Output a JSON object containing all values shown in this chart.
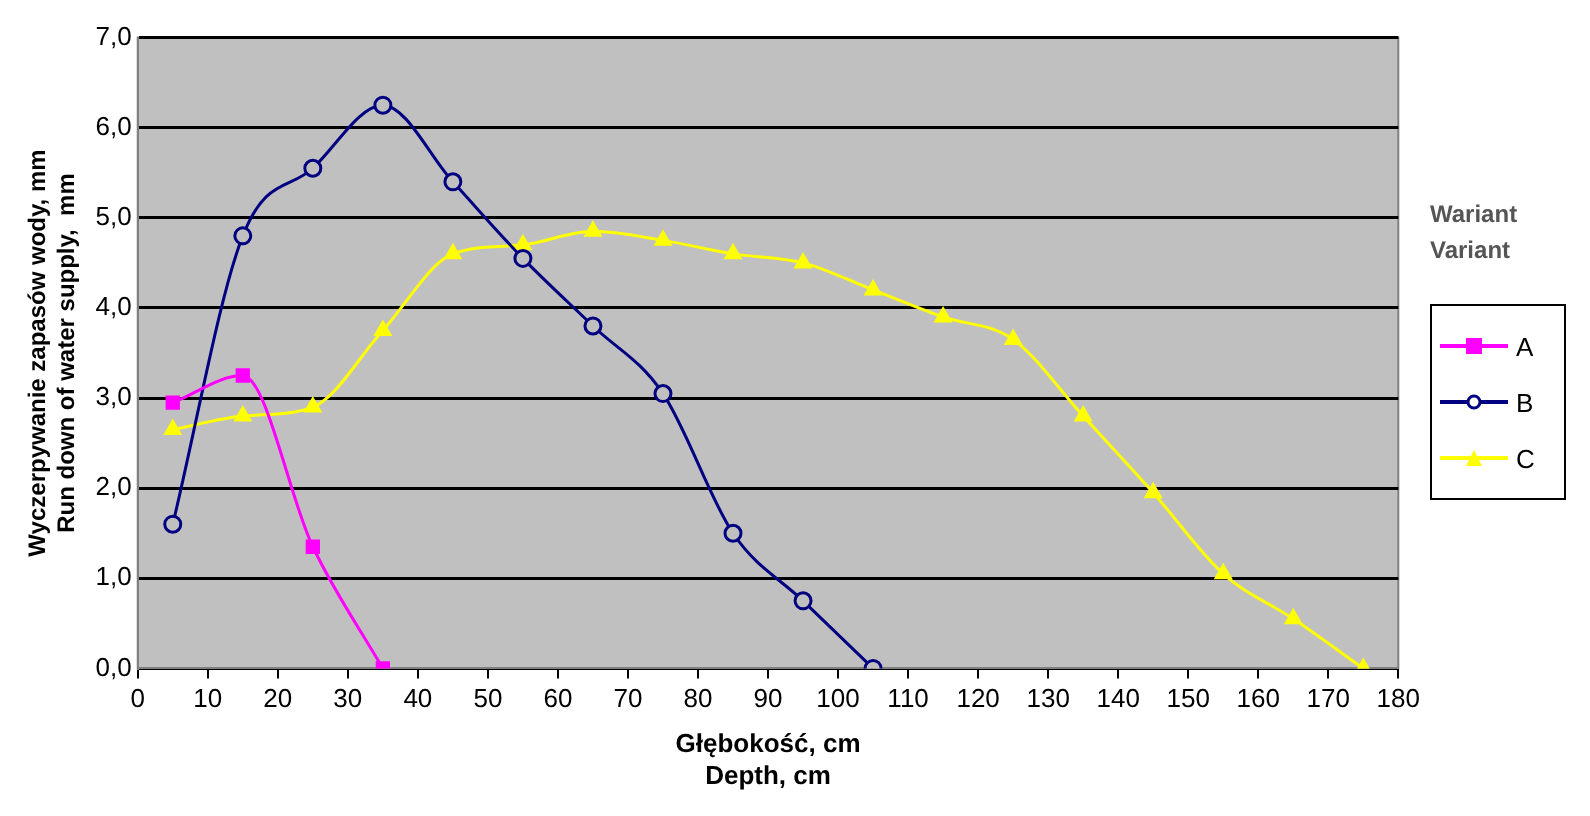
{
  "chart_data": {
    "type": "line",
    "xlabel": "Głębokość, cm\nDepth, cm",
    "ylabel": "Wyczerpywanie zapasów wody, mm\nRun down of water supply,  mm",
    "legend_title": "Wariant\nVariant",
    "legend": "right",
    "grid": "y",
    "xlim": [
      0,
      180
    ],
    "xticks": [
      0,
      10,
      20,
      30,
      40,
      50,
      60,
      70,
      80,
      90,
      100,
      110,
      120,
      130,
      140,
      150,
      160,
      170,
      180
    ],
    "ylim": [
      0,
      7
    ],
    "yticks": [
      {
        "value": 0,
        "label": "0,0"
      },
      {
        "value": 1,
        "label": "1,0"
      },
      {
        "value": 2,
        "label": "2,0"
      },
      {
        "value": 3,
        "label": "3,0"
      },
      {
        "value": 4,
        "label": "4,0"
      },
      {
        "value": 5,
        "label": "5,0"
      },
      {
        "value": 6,
        "label": "6,0"
      },
      {
        "value": 7,
        "label": "7,0"
      }
    ],
    "series": [
      {
        "name": "A",
        "color": "#ff00ff",
        "marker": "square",
        "x": [
          5,
          15,
          25,
          35
        ],
        "values": [
          2.95,
          3.25,
          1.35,
          0
        ]
      },
      {
        "name": "B",
        "color": "#000080",
        "marker": "circle",
        "x": [
          5,
          15,
          25,
          35,
          45,
          55,
          65,
          75,
          85,
          95,
          105
        ],
        "values": [
          1.6,
          4.8,
          5.55,
          6.25,
          5.4,
          4.55,
          3.8,
          3.05,
          1.5,
          0.75,
          0
        ]
      },
      {
        "name": "C",
        "color": "#ffff00",
        "marker": "triangle",
        "x": [
          5,
          15,
          25,
          35,
          45,
          55,
          65,
          75,
          85,
          95,
          105,
          115,
          125,
          135,
          145,
          155,
          165,
          175
        ],
        "values": [
          2.65,
          2.8,
          2.9,
          3.75,
          4.6,
          4.7,
          4.85,
          4.75,
          4.6,
          4.5,
          4.2,
          3.9,
          3.65,
          2.8,
          1.95,
          1.05,
          0.55,
          0
        ]
      }
    ]
  }
}
